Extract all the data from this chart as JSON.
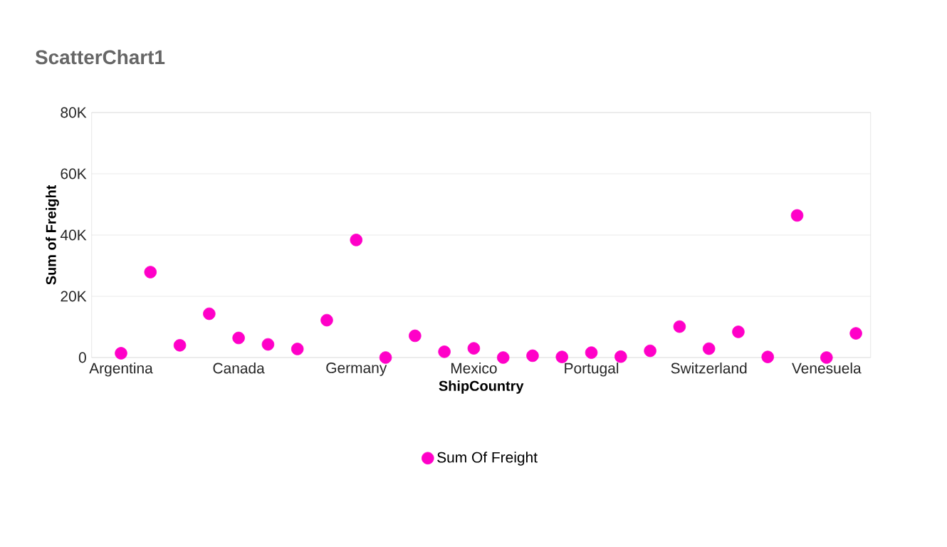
{
  "chart_data": {
    "type": "scatter",
    "title": "ScatterChart1",
    "xlabel": "ShipCountry",
    "ylabel": "Sum of Freight",
    "categories": [
      "Argentina",
      null,
      null,
      null,
      "Canada",
      null,
      null,
      null,
      "Germany",
      null,
      null,
      null,
      "Mexico",
      null,
      null,
      null,
      "Portugal",
      null,
      null,
      null,
      "Switzerland",
      null,
      null,
      null,
      "Venesuela",
      null
    ],
    "series": [
      {
        "name": "Sum Of Freight",
        "color": "#ff00c8",
        "values": [
          1400,
          27900,
          4000,
          14300,
          6400,
          4300,
          2800,
          12200,
          38400,
          0,
          7100,
          1900,
          3000,
          0,
          600,
          200,
          1600,
          300,
          2200,
          10100,
          2900,
          8400,
          200,
          46400,
          0,
          7900
        ]
      }
    ],
    "ylim": [
      0,
      80000
    ],
    "yticks": [
      0,
      {
        "value": 20000,
        "label": "20K"
      },
      {
        "value": 40000,
        "label": "40K"
      },
      {
        "value": 60000,
        "label": "60K"
      },
      {
        "value": 80000,
        "label": "80K"
      }
    ],
    "grid": "y",
    "legend": "bottom"
  }
}
